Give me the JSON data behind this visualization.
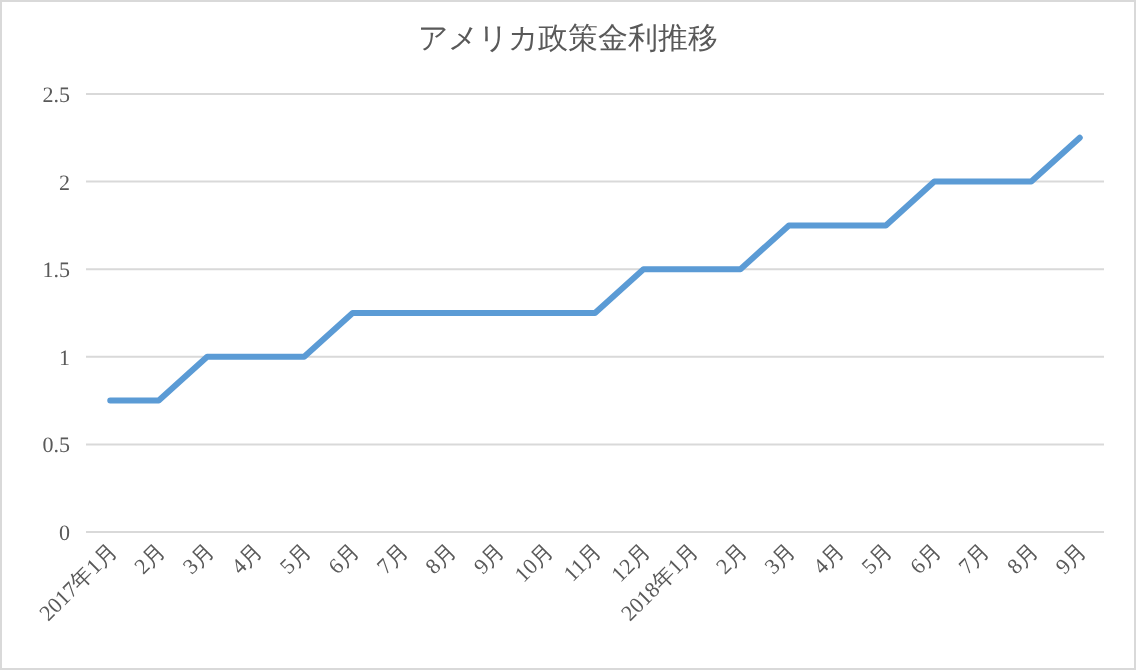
{
  "chart_data": {
    "type": "line",
    "title": "アメリカ政策金利推移",
    "categories": [
      "2017年1月",
      "2月",
      "3月",
      "4月",
      "5月",
      "6月",
      "7月",
      "8月",
      "9月",
      "10月",
      "11月",
      "12月",
      "2018年1月",
      "2月",
      "3月",
      "4月",
      "5月",
      "6月",
      "7月",
      "8月",
      "9月"
    ],
    "values": [
      0.75,
      0.75,
      1,
      1,
      1,
      1.25,
      1.25,
      1.25,
      1.25,
      1.25,
      1.25,
      1.5,
      1.5,
      1.5,
      1.75,
      1.75,
      1.75,
      2,
      2,
      2,
      2.25
    ],
    "color": "#5b9bd5",
    "ylim": [
      0,
      2.5
    ],
    "yticks": [
      0,
      0.5,
      1,
      1.5,
      2,
      2.5
    ],
    "grid": "y"
  }
}
